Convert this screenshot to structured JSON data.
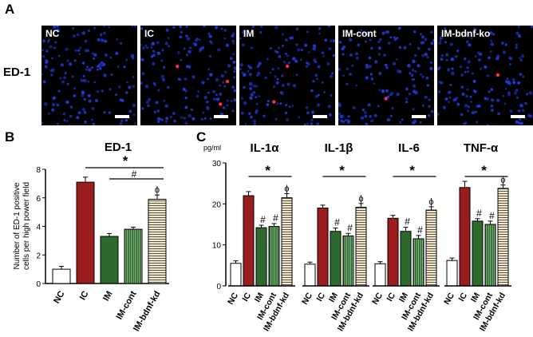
{
  "panels": {
    "a_letter": "A",
    "b_letter": "B",
    "c_letter": "C"
  },
  "panel_a": {
    "row_label": "ED-1",
    "images": [
      {
        "label": "NC",
        "red_spots": 0
      },
      {
        "label": "IC",
        "red_spots": 3
      },
      {
        "label": "IM",
        "red_spots": 2
      },
      {
        "label": "IM-cont",
        "red_spots": 1
      },
      {
        "label": "IM-bdnf-ko",
        "red_spots": 1
      }
    ]
  },
  "colors": {
    "NC": "#ffffff",
    "IC": "#9b1c1c",
    "IM": "#2e6a2e",
    "IM-cont": "#2e6a2e",
    "IM-bdnf-kd": "#f3e7c6",
    "nuclei": "#1f3ad6",
    "ed1": "#ff2a55"
  },
  "chart_data": [
    {
      "type": "bar",
      "title": "ED-1",
      "ylabel": "Number of ED-1 positive cells per high power field",
      "categories": [
        "NC",
        "IC",
        "IM",
        "IM-cont",
        "IM-bdnf-kd"
      ],
      "values": [
        1.0,
        7.1,
        3.3,
        3.8,
        5.9
      ],
      "errors": [
        0.2,
        0.35,
        0.2,
        0.15,
        0.3
      ],
      "ylim": [
        0,
        8
      ],
      "yticks": [
        0,
        2,
        4,
        6,
        8
      ],
      "annotations": {
        "star": "*",
        "hash": "#",
        "phi": "ϕ"
      }
    },
    {
      "type": "bar",
      "unit": "pg/ml",
      "ylim": [
        0,
        30
      ],
      "yticks": [
        0,
        10,
        20,
        30
      ],
      "categories": [
        "NC",
        "IC",
        "IM",
        "IM-cont",
        "IM-bdnf-kd"
      ],
      "groups": [
        {
          "title": "IL-1α",
          "values": [
            5.5,
            22.0,
            14.2,
            14.5,
            21.5
          ],
          "errors": [
            0.6,
            1.0,
            0.6,
            0.7,
            1.0
          ]
        },
        {
          "title": "IL-1β",
          "values": [
            5.3,
            19.0,
            13.3,
            12.2,
            19.2
          ],
          "errors": [
            0.5,
            0.7,
            0.8,
            0.6,
            0.9
          ]
        },
        {
          "title": "IL-6",
          "values": [
            5.4,
            16.5,
            13.3,
            11.5,
            18.5
          ],
          "errors": [
            0.5,
            0.7,
            1.0,
            0.8,
            0.8
          ]
        },
        {
          "title": "TNF-α",
          "values": [
            6.2,
            24.0,
            15.8,
            15.0,
            23.8
          ],
          "errors": [
            0.6,
            1.5,
            0.6,
            0.8,
            0.8
          ]
        }
      ],
      "annotations": {
        "star": "*",
        "hash": "#",
        "phi": "ϕ"
      }
    }
  ]
}
